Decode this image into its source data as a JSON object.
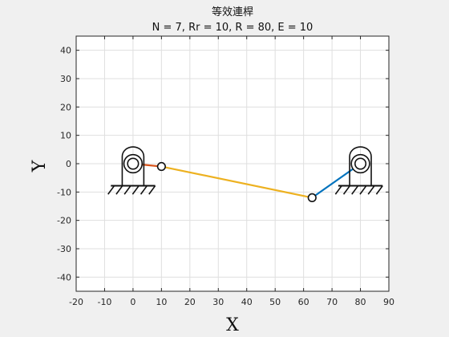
{
  "chart_data": {
    "type": "line",
    "title": "等效連桿",
    "subtitle": "N = 7, Rr = 10, R = 80, E = 10",
    "xlabel": "X",
    "ylabel": "Y",
    "xlim": [
      -20,
      90
    ],
    "ylim": [
      -45,
      45
    ],
    "xticks": [
      -20,
      -10,
      0,
      10,
      20,
      30,
      40,
      50,
      60,
      70,
      80,
      90
    ],
    "yticks": [
      -40,
      -30,
      -20,
      -10,
      0,
      10,
      20,
      30,
      40
    ],
    "grid": true,
    "series": [
      {
        "color": "#D95319",
        "x": [
          0,
          10
        ],
        "y": [
          0,
          -1
        ]
      },
      {
        "color": "#EDB120",
        "x": [
          10,
          63
        ],
        "y": [
          -1,
          -12
        ]
      },
      {
        "color": "#0072BD",
        "x": [
          63,
          80
        ],
        "y": [
          -12,
          0
        ]
      }
    ],
    "joints": [
      {
        "x": 10,
        "y": -1
      },
      {
        "x": 63,
        "y": -12
      }
    ],
    "ground_pivots": [
      {
        "x": 0,
        "y": 0
      },
      {
        "x": 80,
        "y": 0
      }
    ]
  }
}
